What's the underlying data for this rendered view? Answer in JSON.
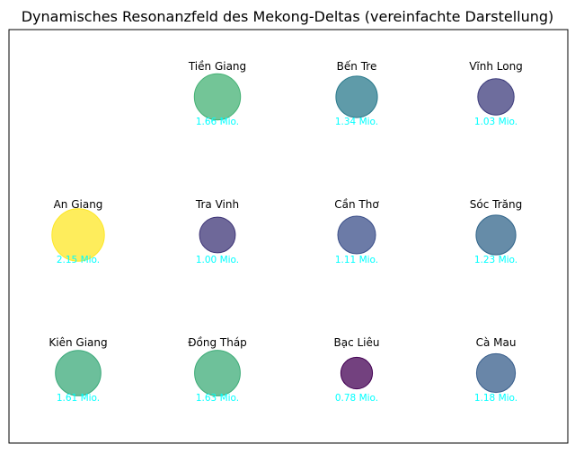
{
  "chart_data": {
    "type": "scatter",
    "title": "Dynamisches Resonanzfeld des Mekong-Deltas (vereinfachte Darstellung)",
    "xlabel": "",
    "ylabel": "",
    "grid": false,
    "axes_ticks_visible": false,
    "value_color": "#00ffff",
    "colormap": "viridis",
    "color_range": [
      0.78,
      2.15
    ],
    "points": [
      {
        "name": "Tiền Giang",
        "col": 1,
        "row": 0,
        "value": 1.66,
        "label": "1.66 Mio."
      },
      {
        "name": "Bến Tre",
        "col": 2,
        "row": 0,
        "value": 1.34,
        "label": "1.34 Mio."
      },
      {
        "name": "Vĩnh Long",
        "col": 3,
        "row": 0,
        "value": 1.03,
        "label": "1.03 Mio."
      },
      {
        "name": "An Giang",
        "col": 0,
        "row": 1,
        "value": 2.15,
        "label": "2.15 Mio."
      },
      {
        "name": "Tra Vinh",
        "col": 1,
        "row": 1,
        "value": 1.0,
        "label": "1.00 Mio."
      },
      {
        "name": "Cần Thơ",
        "col": 2,
        "row": 1,
        "value": 1.11,
        "label": "1.11 Mio."
      },
      {
        "name": "Sóc Trăng",
        "col": 3,
        "row": 1,
        "value": 1.23,
        "label": "1.23 Mio."
      },
      {
        "name": "Kiên Giang",
        "col": 0,
        "row": 2,
        "value": 1.61,
        "label": "1.61 Mio."
      },
      {
        "name": "Đồng Tháp",
        "col": 1,
        "row": 2,
        "value": 1.63,
        "label": "1.63 Mio."
      },
      {
        "name": "Bạc Liêu",
        "col": 2,
        "row": 2,
        "value": 0.78,
        "label": "0.78 Mio."
      },
      {
        "name": "Cà Mau",
        "col": 3,
        "row": 2,
        "value": 1.18,
        "label": "1.18 Mio."
      }
    ]
  }
}
